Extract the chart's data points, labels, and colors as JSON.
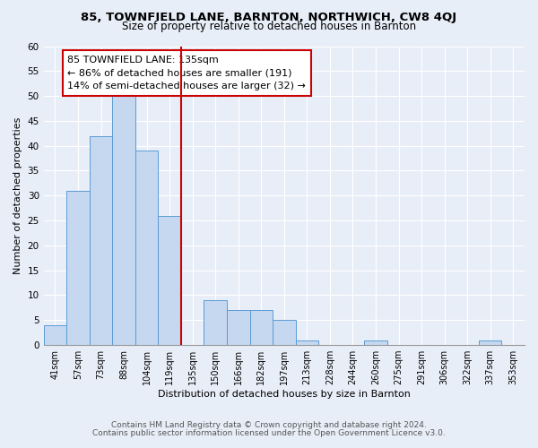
{
  "title1": "85, TOWNFIELD LANE, BARNTON, NORTHWICH, CW8 4QJ",
  "title2": "Size of property relative to detached houses in Barnton",
  "xlabel": "Distribution of detached houses by size in Barnton",
  "ylabel": "Number of detached properties",
  "footer1": "Contains HM Land Registry data © Crown copyright and database right 2024.",
  "footer2": "Contains public sector information licensed under the Open Government Licence v3.0.",
  "bin_labels": [
    "41sqm",
    "57sqm",
    "73sqm",
    "88sqm",
    "104sqm",
    "119sqm",
    "135sqm",
    "150sqm",
    "166sqm",
    "182sqm",
    "197sqm",
    "213sqm",
    "228sqm",
    "244sqm",
    "260sqm",
    "275sqm",
    "291sqm",
    "306sqm",
    "322sqm",
    "337sqm",
    "353sqm"
  ],
  "bar_values": [
    4,
    31,
    42,
    50,
    39,
    26,
    0,
    9,
    7,
    7,
    5,
    1,
    0,
    0,
    1,
    0,
    0,
    0,
    0,
    1,
    0
  ],
  "bar_color": "#c5d8f0",
  "bar_edge_color": "#5b9bd5",
  "annotation_title": "85 TOWNFIELD LANE: 135sqm",
  "annotation_line1": "← 86% of detached houses are smaller (191)",
  "annotation_line2": "14% of semi-detached houses are larger (32) →",
  "annotation_box_color": "#ffffff",
  "annotation_box_edge": "#cc0000",
  "property_line_color": "#cc0000",
  "ylim": [
    0,
    60
  ],
  "yticks": [
    0,
    5,
    10,
    15,
    20,
    25,
    30,
    35,
    40,
    45,
    50,
    55,
    60
  ],
  "background_color": "#e8eef8",
  "plot_bg_color": "#e8eef8",
  "grid_color": "#ffffff",
  "title1_fontsize": 9.5,
  "title2_fontsize": 8.5,
  "xlabel_fontsize": 8,
  "ylabel_fontsize": 8
}
